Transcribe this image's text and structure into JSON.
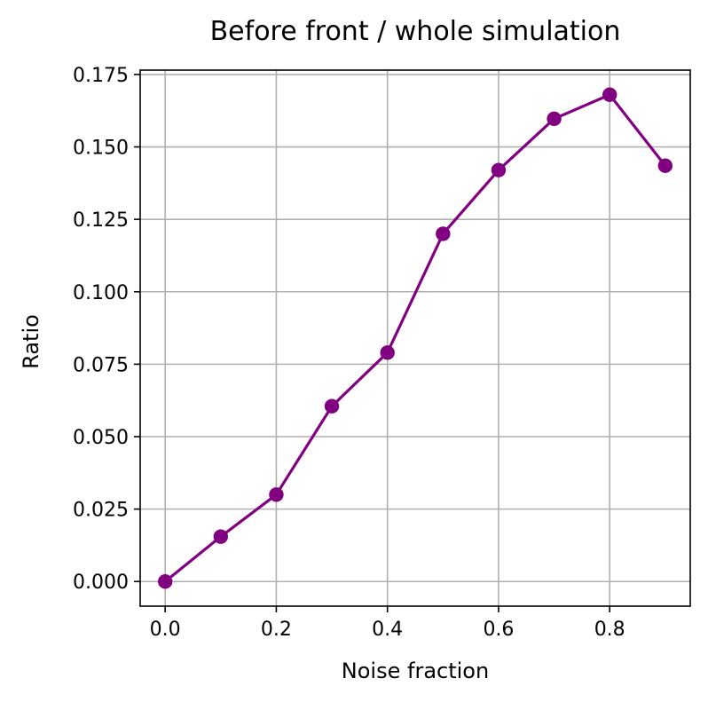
{
  "chart_data": {
    "type": "line",
    "title": "Before front / whole simulation",
    "xlabel": "Noise fraction",
    "ylabel": "Ratio",
    "x": [
      0.0,
      0.1,
      0.2,
      0.3,
      0.4,
      0.5,
      0.6,
      0.7,
      0.8,
      0.9
    ],
    "series": [
      {
        "values": [
          0.0,
          0.0155,
          0.03,
          0.0605,
          0.079,
          0.12,
          0.142,
          0.1597,
          0.168,
          0.1435
        ],
        "color": "#800080",
        "marker": "circle"
      }
    ],
    "xlim": [
      -0.045,
      0.945
    ],
    "ylim": [
      -0.0085,
      0.1765
    ],
    "xticks": [
      0.0,
      0.2,
      0.4,
      0.6,
      0.8
    ],
    "xtick_labels": [
      "0.0",
      "0.2",
      "0.4",
      "0.6",
      "0.8"
    ],
    "yticks": [
      0.0,
      0.025,
      0.05,
      0.075,
      0.1,
      0.125,
      0.15,
      0.175
    ],
    "ytick_labels": [
      "0.000",
      "0.025",
      "0.050",
      "0.075",
      "0.100",
      "0.125",
      "0.150",
      "0.175"
    ],
    "grid": true,
    "grid_color": "#b0b0b0"
  }
}
